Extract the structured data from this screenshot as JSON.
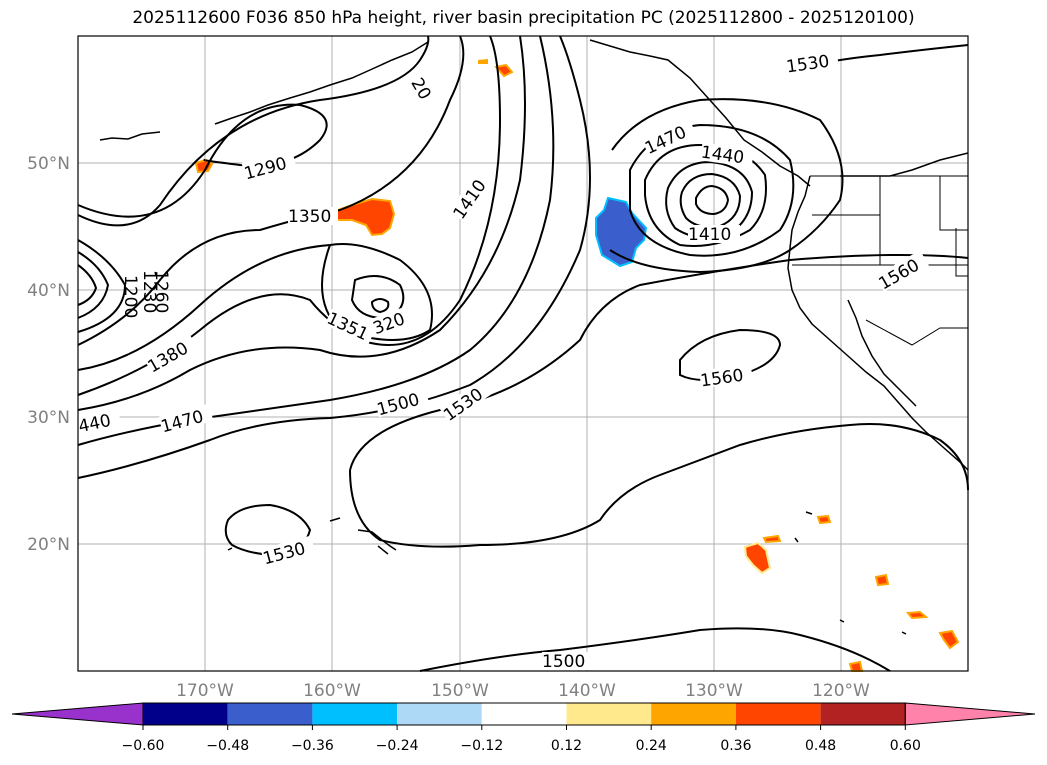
{
  "title": "2025112600 F036 850 hPa height, river basin precipitation PC (2025112800 - 2025120100)",
  "map": {
    "lat_labels": [
      "50°N",
      "40°N",
      "30°N",
      "20°N"
    ],
    "lon_labels": [
      "170°W",
      "160°W",
      "150°W",
      "140°W",
      "130°W",
      "120°W"
    ],
    "contour_labels": [
      "1290",
      "1350",
      "1410",
      "1470",
      "1440",
      "1410",
      "1530",
      "1560",
      "1380",
      "1470",
      "1500",
      "1530",
      "1560",
      "1530",
      "1500",
      "1351",
      "320",
      "1200",
      "1230",
      "1260",
      "440",
      "20"
    ],
    "colors": {
      "coast": "#000000",
      "grid": "#b0b0b0",
      "positive_anomaly": "#ff4500",
      "negative_anomaly": "#3a5fcd"
    }
  },
  "colorbar": {
    "ticks": [
      "−0.60",
      "−0.48",
      "−0.36",
      "−0.24",
      "−0.12",
      "0.12",
      "0.24",
      "0.36",
      "0.48",
      "0.60"
    ],
    "colors": [
      "#9932cc",
      "#00008b",
      "#3a5fcd",
      "#00bfff",
      "#add8f6",
      "#ffffff",
      "#ffe98c",
      "#ffa500",
      "#ff4500",
      "#b22222",
      "#ff82ab"
    ]
  }
}
